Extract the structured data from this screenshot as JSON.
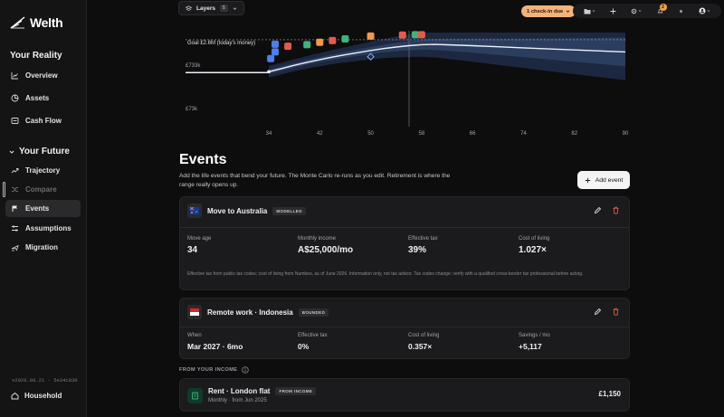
{
  "app": {
    "name": "Welth",
    "version": "v2026.06.21 · 5e34c830"
  },
  "sidebar": {
    "reality_title": "Your Reality",
    "reality_items": [
      {
        "label": "Overview",
        "icon": "chart-line-icon"
      },
      {
        "label": "Assets",
        "icon": "pie-icon"
      },
      {
        "label": "Cash Flow",
        "icon": "cashflow-icon"
      }
    ],
    "future_title": "Your Future",
    "future_items": [
      {
        "label": "Trajectory",
        "icon": "trend-up-icon"
      },
      {
        "label": "Compare",
        "icon": "shuffle-icon"
      },
      {
        "label": "Events",
        "icon": "flag-icon"
      },
      {
        "label": "Assumptions",
        "icon": "sliders-icon"
      },
      {
        "label": "Migration",
        "icon": "plane-icon"
      }
    ],
    "household_label": "Household"
  },
  "topbar": {
    "layers_label": "Layers",
    "layers_count": "5",
    "checkin_label": "1 check-in due",
    "notification_count": "2"
  },
  "chart_data": {
    "type": "line",
    "goal_label": "Goal £2.6M (today's money)",
    "y_tick_labels": [
      "£733k",
      "£73k"
    ],
    "x_ticks": [
      34,
      42,
      50,
      58,
      66,
      74,
      82,
      90
    ],
    "xlim": [
      34,
      90
    ],
    "y_scale": "log",
    "goal_value": 2600000,
    "median_series": {
      "x": [
        34,
        36,
        38,
        40,
        42,
        44,
        46,
        48,
        50,
        52,
        54,
        56,
        58,
        60,
        62,
        64,
        66,
        70,
        74,
        78,
        82,
        86,
        90
      ],
      "y": [
        560000,
        650000,
        760000,
        880000,
        1000000,
        1130000,
        1260000,
        1400000,
        1550000,
        1700000,
        1830000,
        1950000,
        2050000,
        2080000,
        2040000,
        2000000,
        1950000,
        1850000,
        1760000,
        1670000,
        1590000,
        1520000,
        1450000
      ]
    },
    "colors": {
      "band": "#2a3a5a",
      "median": "#e8ecf4",
      "goal_line": "#9a9aa0",
      "accent_red": "#e25c4d",
      "accent_green": "#3fb27d",
      "accent_orange": "#f29a4a",
      "accent_blue": "#4f7ee8"
    }
  },
  "events": {
    "title": "Events",
    "subtitle": "Add the life events that bend your future. The Monte Carlo re-runs as you edit. Retirement is where the range really opens up.",
    "add_label": "Add event",
    "cards": [
      {
        "name": "Move to Australia",
        "tag": "MODELLED",
        "stats": [
          {
            "label": "Move age",
            "value": "34"
          },
          {
            "label": "Monthly income",
            "value": "A$25,000/mo"
          },
          {
            "label": "Effective tax",
            "value": "39%"
          },
          {
            "label": "Cost of living",
            "value": "1.027×"
          }
        ],
        "disclaimer": "Effective tax from public tax codes; cost of living from Numbeo, as of June 2026. Information only, not tax advice. Tax codes change; verify with a qualified cross-border tax professional before acting."
      },
      {
        "name": "Remote work · Indonesia",
        "tag": "BOUNDED",
        "stats": [
          {
            "label": "When",
            "value": "Mar 2027 · 6mo"
          },
          {
            "label": "Effective tax",
            "value": "0%"
          },
          {
            "label": "Cost of living",
            "value": "0.357×"
          },
          {
            "label": "Savings / mo",
            "value": "+5,117"
          }
        ]
      }
    ],
    "from_income_label": "FROM YOUR INCOME",
    "income_item": {
      "name": "Rent · London flat",
      "tag": "FROM INCOME",
      "sub": "Monthly · from Jun 2025",
      "amount": "£1,150"
    }
  }
}
